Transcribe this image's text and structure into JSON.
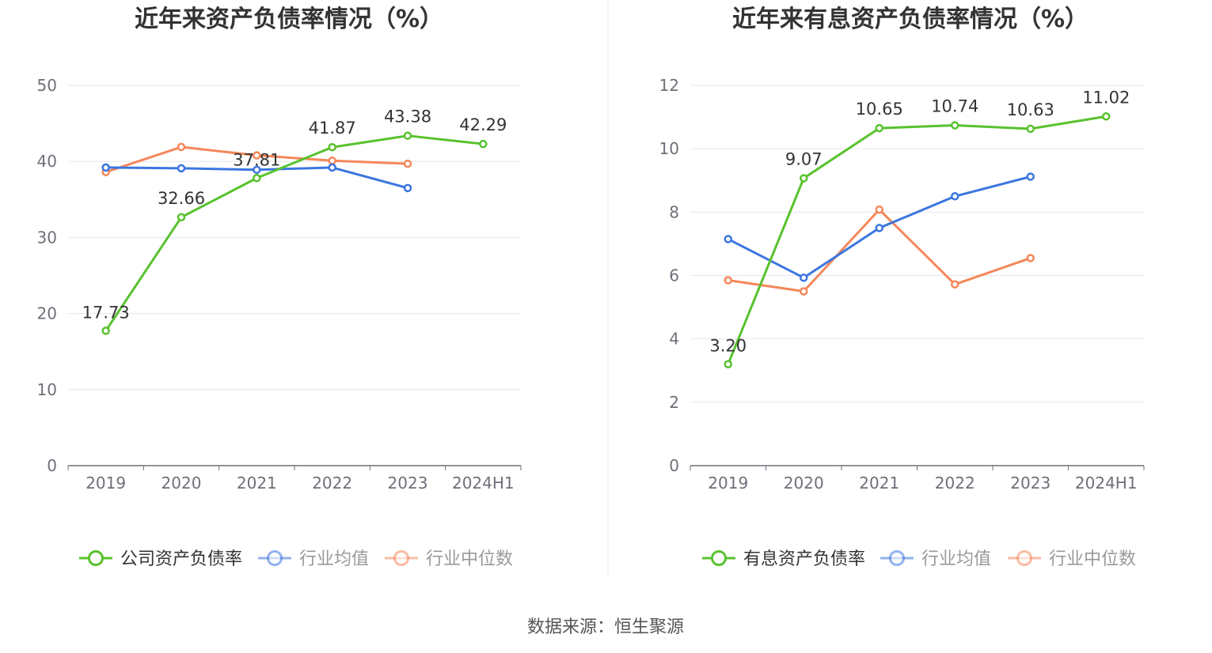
{
  "source_label": "数据来源：恒生聚源",
  "colors": {
    "company": "#58c22e",
    "avg": "#3c76e0",
    "median": "#f5875a",
    "grid": "#e3e6ef",
    "axis": "#6e7079"
  },
  "chart_data": [
    {
      "type": "line",
      "title": "近年来资产负债率情况（%）",
      "categories": [
        "2019",
        "2020",
        "2021",
        "2022",
        "2023",
        "2024H1"
      ],
      "ylim": [
        0,
        50
      ],
      "yticks": [
        "0",
        "10",
        "20",
        "30",
        "40",
        "50"
      ],
      "grid": true,
      "legend_position": "bottom",
      "series": [
        {
          "name": "公司资产负债率",
          "color": "#58c22e",
          "values": [
            17.73,
            32.66,
            37.81,
            41.87,
            43.38,
            42.29
          ],
          "labels": [
            "17.73",
            "32.66",
            "37.81",
            "41.87",
            "43.38",
            "42.29"
          ]
        },
        {
          "name": "行业均值",
          "color": "#3c76e0",
          "values": [
            39.2,
            39.1,
            38.9,
            39.2,
            36.5,
            null
          ]
        },
        {
          "name": "行业中位数",
          "color": "#f5875a",
          "values": [
            38.6,
            41.9,
            40.8,
            40.1,
            39.7,
            null
          ]
        }
      ]
    },
    {
      "type": "line",
      "title": "近年来有息资产负债率情况（%）",
      "categories": [
        "2019",
        "2020",
        "2021",
        "2022",
        "2023",
        "2024H1"
      ],
      "ylim": [
        0,
        12
      ],
      "yticks": [
        "0",
        "2",
        "4",
        "6",
        "8",
        "10",
        "12"
      ],
      "grid": true,
      "legend_position": "bottom",
      "series": [
        {
          "name": "有息资产负债率",
          "color": "#58c22e",
          "values": [
            3.2,
            9.07,
            10.65,
            10.74,
            10.63,
            11.02
          ],
          "labels": [
            "3.20",
            "9.07",
            "10.65",
            "10.74",
            "10.63",
            "11.02"
          ]
        },
        {
          "name": "行业均值",
          "color": "#3c76e0",
          "values": [
            7.15,
            5.93,
            7.5,
            8.5,
            9.12,
            null
          ]
        },
        {
          "name": "行业中位数",
          "color": "#f5875a",
          "values": [
            5.85,
            5.5,
            8.08,
            5.72,
            6.55,
            null
          ]
        }
      ]
    }
  ]
}
